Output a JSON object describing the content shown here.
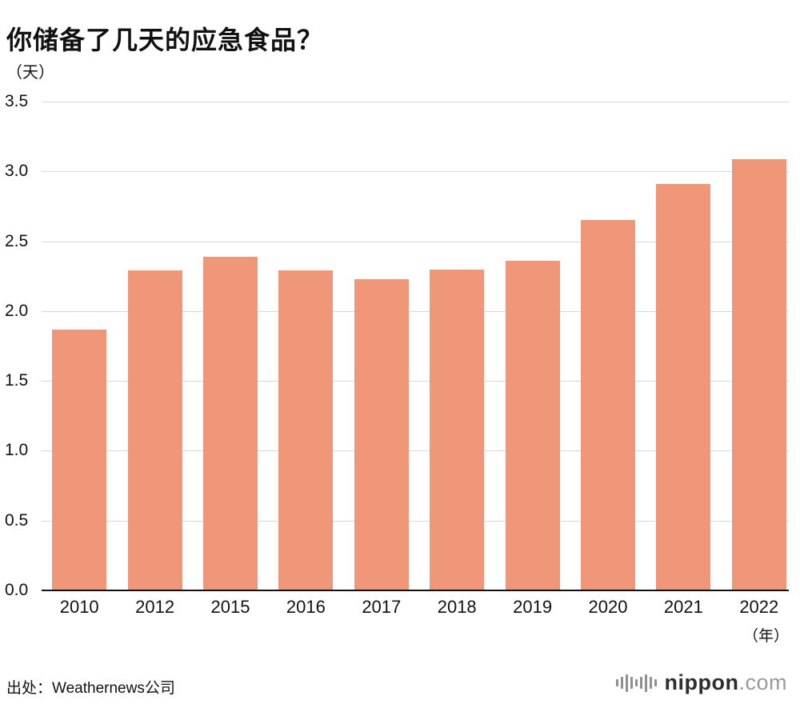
{
  "title": "你储备了几天的应急食品？",
  "y_axis_unit": "（天）",
  "x_axis_unit": "（年）",
  "source": "出处：Weathernews公司",
  "logo": {
    "icon": "waveform-icon",
    "name": "nippon",
    "tld": ".com"
  },
  "colors": {
    "bar": "#F0977A",
    "grid": "#D8D8D8",
    "axis": "#111111"
  },
  "chart_data": {
    "type": "bar",
    "title": "你储备了几天的应急食品？",
    "categories": [
      "2010",
      "2012",
      "2015",
      "2016",
      "2017",
      "2018",
      "2019",
      "2020",
      "2021",
      "2022"
    ],
    "values": [
      1.87,
      2.29,
      2.39,
      2.29,
      2.23,
      2.3,
      2.36,
      2.65,
      2.91,
      3.09
    ],
    "xlabel": "（年）",
    "ylabel": "（天）",
    "ylim": [
      0,
      3.5
    ],
    "yticks": [
      "3.5",
      "3.0",
      "2.5",
      "2.0",
      "1.5",
      "1.0",
      "0.5",
      "0.0"
    ],
    "grid": true,
    "legend": false,
    "bar_color": "#F0977A"
  }
}
